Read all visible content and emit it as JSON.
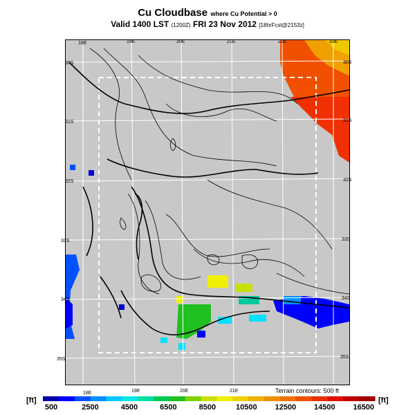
{
  "header": {
    "title": "Cu Cloudbase",
    "subtitle": "where Cu Potential > 0",
    "valid": "Valid 1400 LST",
    "run": "(1200Z)",
    "date": "FRI 23 Nov 2012",
    "forecast": "[18hrFcst@2153z]"
  },
  "map": {
    "lon_labels": [
      "18E",
      "19E",
      "20E",
      "21E",
      "22E",
      "23E"
    ],
    "lat_labels": [
      "30S",
      "31S",
      "32S",
      "33S",
      "34S",
      "35S"
    ],
    "terrain_note": "Terrain contours: 500 ft"
  },
  "colorbar": {
    "unit": "[ft]",
    "ticks": [
      "500",
      "2500",
      "4500",
      "6500",
      "8500",
      "10500",
      "12500",
      "14500",
      "16500"
    ],
    "colors": [
      "#0000aa",
      "#0000ff",
      "#0050ff",
      "#0090ff",
      "#00c8ff",
      "#00e8e8",
      "#00e0a0",
      "#00c850",
      "#20c020",
      "#80d000",
      "#c8e000",
      "#f0f000",
      "#f0d000",
      "#f0b000",
      "#f09000",
      "#f07000",
      "#f05000",
      "#e83000",
      "#e01000",
      "#c00000",
      "#a00000"
    ]
  },
  "field_colors": {
    "blue": "#0000ff",
    "light_blue": "#0090ff",
    "cyan": "#00e0ff",
    "green": "#20c020",
    "yellow": "#f0f000",
    "orange": "#f0a000",
    "red": "#f00000"
  }
}
